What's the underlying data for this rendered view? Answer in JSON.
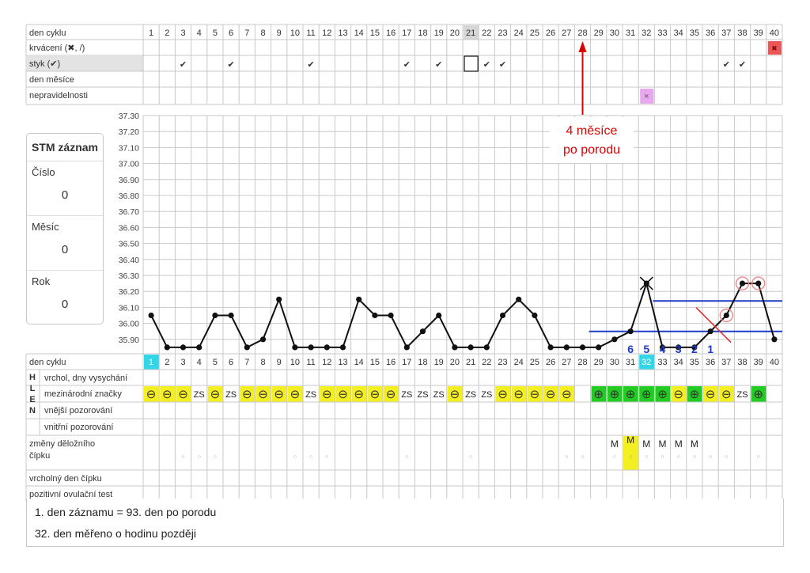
{
  "colors": {
    "grid": "#c8c8c8",
    "cyan": "#33d6e6",
    "yellow": "#f4ef20",
    "green": "#22cc22",
    "red": "#e03030",
    "pink": "#e8a8f0",
    "blue": "#1e3cc8",
    "annotation_red": "#dd0000"
  },
  "rows_top": {
    "den_cyklu": "den cyklu",
    "krvaceni": "krvácení (✖, /)",
    "styk": "styk (✔)",
    "den_mesice": "den měsíce",
    "nepravidelnosti": "nepravidelnosti"
  },
  "rows_bottom": {
    "den_cyklu": "den cyklu",
    "hlen_letters": [
      "H",
      "L",
      "E",
      "N"
    ],
    "vrchol": "vrchol, dny vysychání",
    "mezinarodni": "mezinárodní značky",
    "vnejsi": "vnější pozorování",
    "vnitrni": "vnitřní pozorování",
    "zmeny_1": "změny děložního",
    "zmeny_2": "čípku",
    "vrcholny": "vrcholný den čípku",
    "ovulacni": "pozitivní ovulační test"
  },
  "stm": {
    "title": "STM záznam",
    "cislo_label": "Číslo",
    "cislo_value": "0",
    "mesic_label": "Měsíc",
    "mesic_value": "0",
    "rok_label": "Rok",
    "rok_value": "0"
  },
  "annotation": {
    "line1": "4 měsíce",
    "line2": "po porodu"
  },
  "notes": {
    "line1": "1. den záznamu = 93. den po porodu",
    "line2": "32. den měřeno o hodinu později"
  },
  "marks": {
    "check": "✔",
    "bleed": "✖",
    "irregular": "×",
    "minus": "⊖",
    "plus": "⊕",
    "zs": "ZS",
    "m": "M",
    "o": "○"
  },
  "styk_days": [
    3,
    6,
    11,
    17,
    19,
    22,
    23,
    37,
    38
  ],
  "styk_box_day": 21,
  "krvaceni_day": 40,
  "nepravidelnosti_day": 32,
  "highlight_header_day": 21,
  "cyan_days": [
    1,
    32
  ],
  "mucus_marks": [
    "minus",
    "minus",
    "minus",
    "zs",
    "minus",
    "zs",
    "minus",
    "minus",
    "minus",
    "minus",
    "zs",
    "minus",
    "minus",
    "minus",
    "minus",
    "minus",
    "zs",
    "zs",
    "zs",
    "minus",
    "zs",
    "zs",
    "minus",
    "minus",
    "minus",
    "minus",
    "minus",
    "",
    "plus",
    "plus",
    "plus",
    "plus",
    "plus",
    "minus",
    "plus",
    "minus",
    "minus",
    "zs",
    "plus",
    ""
  ],
  "cervix_m_days": [
    30,
    31,
    32,
    33,
    34,
    35
  ],
  "cervix_o_days": [
    3,
    4,
    5,
    10,
    11,
    12,
    17,
    21,
    27,
    28,
    30,
    31,
    32,
    33,
    34,
    35,
    36,
    37,
    39
  ],
  "cervix_yellow_day": 31,
  "count_labels": [
    {
      "day": 31,
      "text": "6"
    },
    {
      "day": 32,
      "text": "5"
    },
    {
      "day": 33,
      "text": "4"
    },
    {
      "day": 34,
      "text": "3"
    },
    {
      "day": 35,
      "text": "2"
    },
    {
      "day": 36,
      "text": "1"
    }
  ],
  "chart_data": {
    "type": "line",
    "title": "",
    "xlabel": "den cyklu",
    "ylabel": "",
    "x": [
      1,
      2,
      3,
      4,
      5,
      6,
      7,
      8,
      9,
      10,
      11,
      12,
      13,
      14,
      15,
      16,
      17,
      18,
      19,
      20,
      21,
      22,
      23,
      24,
      25,
      26,
      27,
      28,
      29,
      30,
      31,
      32,
      33,
      34,
      35,
      36,
      37,
      38,
      39,
      40
    ],
    "y": [
      36.05,
      35.85,
      35.85,
      35.85,
      36.05,
      36.05,
      35.85,
      35.9,
      36.15,
      35.85,
      35.85,
      35.85,
      35.85,
      36.15,
      36.05,
      36.05,
      35.85,
      35.95,
      36.05,
      35.85,
      35.85,
      35.85,
      36.05,
      36.15,
      36.05,
      35.85,
      35.85,
      35.85,
      35.85,
      35.9,
      35.95,
      36.25,
      35.85,
      35.85,
      35.85,
      35.95,
      36.05,
      36.25,
      36.25,
      35.9
    ],
    "ylim": [
      35.85,
      37.3
    ],
    "yticks": [
      "37.30",
      "37.20",
      "37.10",
      "37.00",
      "36.90",
      "36.80",
      "36.70",
      "36.60",
      "36.50",
      "36.40",
      "36.30",
      "36.20",
      "36.10",
      "36.00",
      "35.90"
    ],
    "cover_line_upper": {
      "value": 36.15,
      "from_day": 33,
      "to_day": 40
    },
    "cover_line_lower": {
      "value": 35.95,
      "from_day": 29,
      "to_day": 40
    },
    "excluded_days": [
      32
    ],
    "circled_days": [
      37,
      38,
      39
    ],
    "crossed_day": 36,
    "grid": true
  }
}
